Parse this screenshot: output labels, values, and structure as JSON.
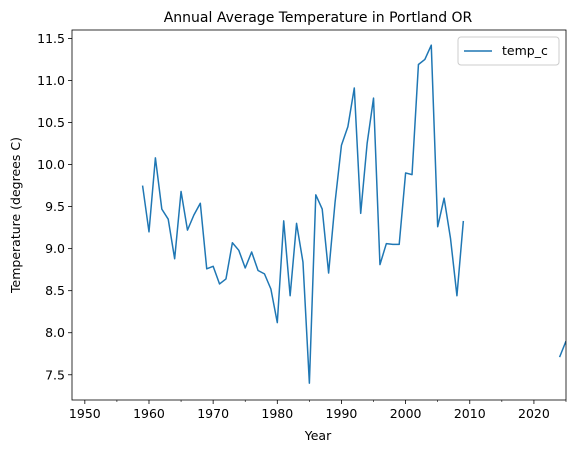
{
  "chart_data": {
    "type": "line",
    "title": "Annual Average Temperature in Portland OR",
    "xlabel": "Year",
    "ylabel": "Temperature (degrees C)",
    "xlim": [
      1948,
      2025
    ],
    "ylim": [
      7.2,
      11.6
    ],
    "xticks": [
      1950,
      1960,
      1970,
      1980,
      1990,
      2000,
      2010,
      2020
    ],
    "yticks": [
      7.5,
      8.0,
      8.5,
      9.0,
      9.5,
      10.0,
      10.5,
      11.0,
      11.5
    ],
    "xtick_labels": [
      "1950",
      "1960",
      "1970",
      "1980",
      "1990",
      "2000",
      "2010",
      "2020"
    ],
    "ytick_labels": [
      "7.5",
      "8.0",
      "8.5",
      "9.0",
      "9.5",
      "10.0",
      "10.5",
      "11.0",
      "11.5"
    ],
    "grid": false,
    "legend_position": "top-right",
    "series": [
      {
        "name": "temp_c",
        "color": "#1f77b4",
        "segments": [
          {
            "x": [
              1959,
              1960,
              1961,
              1962,
              1963,
              1964,
              1965,
              1966,
              1967,
              1968,
              1969,
              1970,
              1971,
              1972,
              1973,
              1974,
              1975,
              1976,
              1977,
              1978,
              1979,
              1980,
              1981,
              1982,
              1983,
              1984,
              1985,
              1986,
              1987,
              1988,
              1989,
              1990,
              1991,
              1992,
              1993,
              1994,
              1995,
              1996,
              1997,
              1998,
              1999,
              2000,
              2001,
              2002,
              2003,
              2004,
              2005,
              2006,
              2007,
              2008,
              2009
            ],
            "y": [
              9.75,
              9.2,
              10.08,
              9.47,
              9.35,
              8.88,
              9.68,
              9.22,
              9.4,
              9.54,
              8.76,
              8.79,
              8.58,
              8.64,
              9.07,
              8.98,
              8.77,
              8.96,
              8.74,
              8.7,
              8.52,
              8.12,
              9.33,
              8.44,
              9.3,
              8.84,
              7.4,
              9.64,
              9.47,
              8.71,
              9.55,
              10.23,
              10.45,
              10.91,
              9.42,
              10.25,
              10.79,
              8.81,
              9.06,
              9.05,
              9.05,
              9.9,
              9.88,
              11.19,
              11.25,
              11.42,
              9.26,
              9.6,
              9.12,
              8.44,
              9.33
            ]
          },
          {
            "x": [
              2024,
              2025
            ],
            "y": [
              7.71,
              7.9
            ]
          }
        ]
      }
    ]
  }
}
